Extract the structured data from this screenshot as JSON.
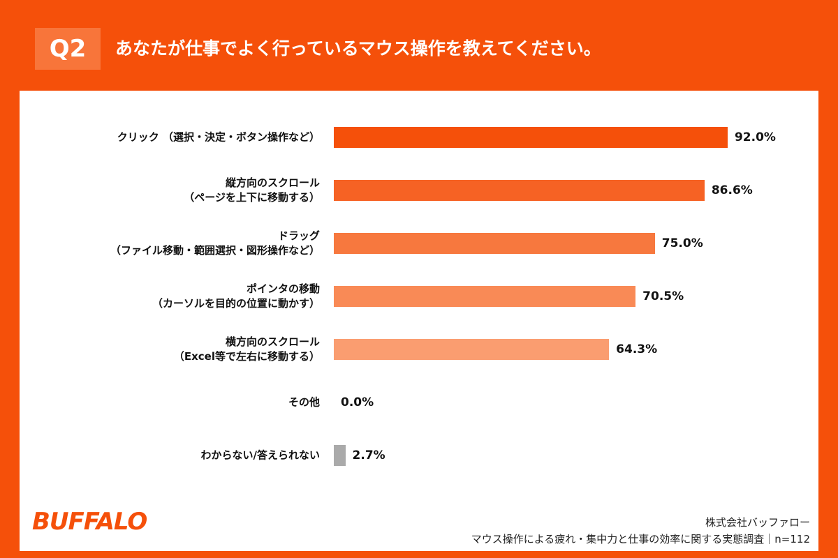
{
  "chart_data": {
    "type": "bar",
    "orientation": "horizontal",
    "header_label": "Q2",
    "title": "あなたが仕事でよく行っているマウス操作を教えてください。",
    "categories": [
      "クリック （選択・決定・ボタン操作など）",
      "縦方向のスクロール\n（ページを上下に移動する）",
      "ドラッグ\n（ファイル移動・範囲選択・図形操作など）",
      "ポインタの移動\n（カーソルを目的の位置に動かす）",
      "横方向のスクロール\n（Excel等で左右に移動する）",
      "その他",
      "わからない/答えられない"
    ],
    "values": [
      92.0,
      86.6,
      75.0,
      70.5,
      64.3,
      0.0,
      2.7
    ],
    "value_labels": [
      "92.0%",
      "86.6%",
      "75.0%",
      "70.5%",
      "64.3%",
      "0.0%",
      "2.7%"
    ],
    "colors": [
      "#f5500a",
      "#f66224",
      "#f7783e",
      "#f98a56",
      "#fa9d70",
      "#fbb08a",
      "#aaaaaa"
    ],
    "xlim": [
      0,
      100
    ],
    "logo": "BUFFALO",
    "company": "株式会社バッファロー",
    "source": "マウス操作による疲れ・集中力と仕事の効率に関する実態調査｜n=112"
  }
}
